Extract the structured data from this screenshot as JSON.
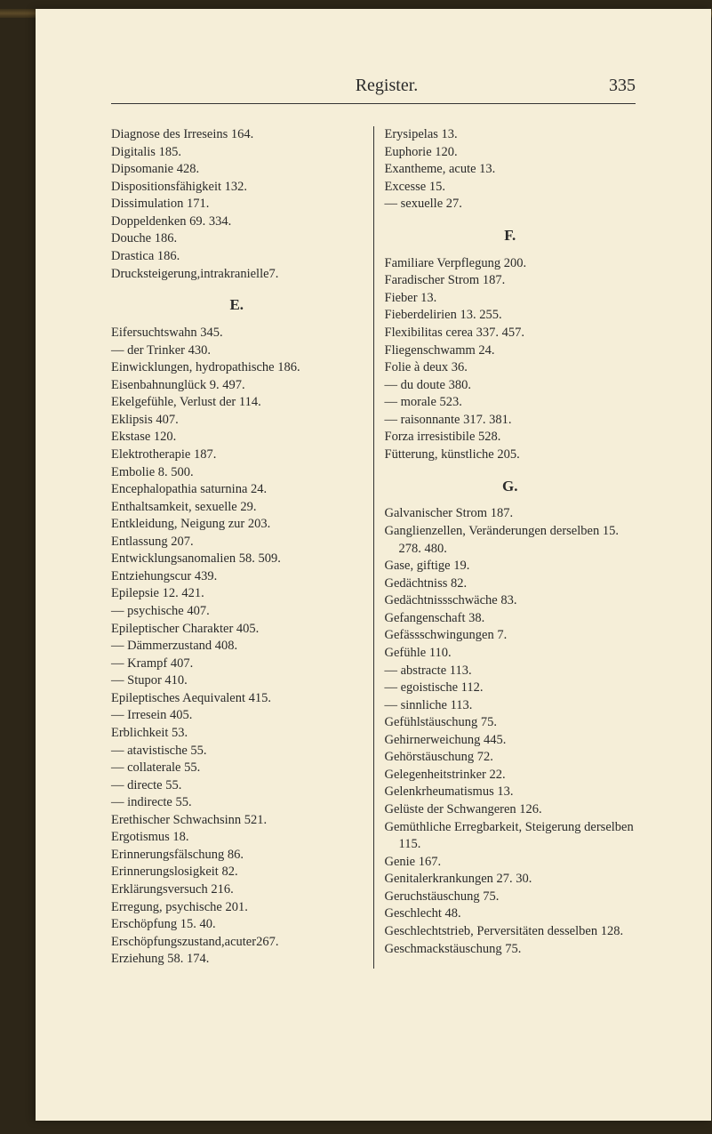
{
  "header": {
    "title": "Register.",
    "page_number": "335"
  },
  "left_column": {
    "entries_1": [
      "Diagnose des Irreseins 164.",
      "Digitalis 185.",
      "Dipsomanie 428.",
      "Dispositionsfähigkeit 132.",
      "Dissimulation 171.",
      "Doppeldenken 69. 334.",
      "Douche 186.",
      "Drastica 186.",
      "Drucksteigerung,intrakranielle7."
    ],
    "section_e": "E.",
    "entries_2": [
      "Eifersuchtswahn 345.",
      "— der Trinker 430.",
      "Einwicklungen, hydropathische 186.",
      "Eisenbahnunglück 9. 497.",
      "Ekelgefühle, Verlust der 114.",
      "Eklipsis 407.",
      "Ekstase 120.",
      "Elektrotherapie 187.",
      "Embolie 8. 500.",
      "Encephalopathia saturnina 24.",
      "Enthaltsamkeit, sexuelle 29.",
      "Entkleidung, Neigung zur 203.",
      "Entlassung 207.",
      "Entwicklungsanomalien 58. 509.",
      "Entziehungscur 439.",
      "Epilepsie 12. 421.",
      "— psychische 407.",
      "Epileptischer Charakter 405.",
      "— Dämmerzustand 408.",
      "— Krampf 407.",
      "— Stupor 410.",
      "Epileptisches Aequivalent 415.",
      "— Irresein 405.",
      "Erblichkeit 53.",
      "— atavistische 55.",
      "— collaterale 55.",
      "— directe 55.",
      "— indirecte 55.",
      "Erethischer Schwachsinn 521.",
      "Ergotismus 18.",
      "Erinnerungsfälschung 86.",
      "Erinnerungslosigkeit 82.",
      "Erklärungsversuch 216.",
      "Erregung, psychische 201.",
      "Erschöpfung 15. 40.",
      "Erschöpfungszustand,acuter267.",
      "Erziehung 58. 174."
    ]
  },
  "right_column": {
    "entries_1": [
      "Erysipelas 13.",
      "Euphorie 120.",
      "Exantheme, acute 13.",
      "Excesse 15.",
      "— sexuelle 27."
    ],
    "section_f": "F.",
    "entries_2": [
      "Familiare Verpflegung 200.",
      "Faradischer Strom 187.",
      "Fieber 13.",
      "Fieberdelirien 13. 255.",
      "Flexibilitas cerea 337. 457.",
      "Fliegenschwamm 24.",
      "Folie à deux 36.",
      "— du doute 380.",
      "— morale 523.",
      "— raisonnante 317. 381.",
      "Forza irresistibile 528.",
      "Fütterung, künstliche 205."
    ],
    "section_g": "G.",
    "entries_3": [
      "Galvanischer Strom 187.",
      "Ganglienzellen, Veränderungen derselben 15. 278. 480.",
      "Gase, giftige 19.",
      "Gedächtniss 82.",
      "Gedächtnissschwäche 83.",
      "Gefangenschaft 38.",
      "Gefässschwingungen 7.",
      "Gefühle 110.",
      "— abstracte 113.",
      "— egoistische 112.",
      "— sinnliche 113.",
      "Gefühlstäuschung 75.",
      "Gehirnerweichung 445.",
      "Gehörstäuschung 72.",
      "Gelegenheitstrinker 22.",
      "Gelenkrheumatismus 13.",
      "Gelüste der Schwangeren 126.",
      "Gemüthliche Erregbarkeit, Steigerung derselben 115.",
      "Genie 167.",
      "Genitalerkrankungen 27. 30.",
      "Geruchstäuschung 75.",
      "Geschlecht 48.",
      "Geschlechtstrieb, Perversitäten desselben 128.",
      "Geschmackstäuschung 75."
    ]
  },
  "styling": {
    "background_color": "#f5eed8",
    "text_color": "#2a2a2a",
    "body_bg": "#2d2618",
    "font_family": "Georgia, Times New Roman, serif",
    "body_fontsize": 14.5,
    "header_fontsize": 20,
    "section_fontsize": 17
  }
}
